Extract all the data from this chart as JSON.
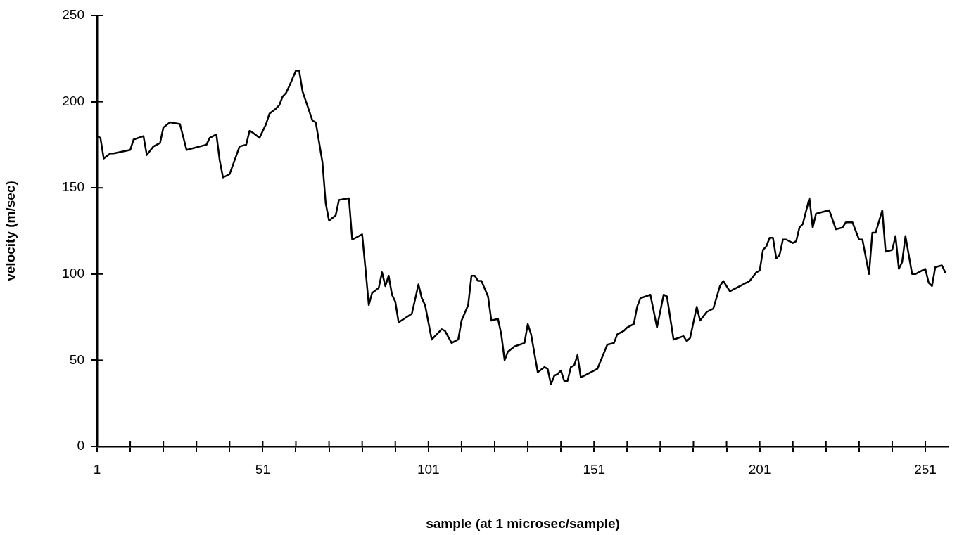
{
  "chart_data": {
    "type": "line",
    "xlabel": "sample (at 1 microsec/sample)",
    "ylabel": "velocity (m/sec)",
    "xlim": [
      1,
      258
    ],
    "ylim": [
      0,
      250
    ],
    "xticks": [
      1,
      {
        "value": 11,
        "label": null
      },
      {
        "value": 21,
        "label": null
      },
      {
        "value": 31,
        "label": null
      },
      {
        "value": 41,
        "label": null
      },
      51,
      {
        "value": 61,
        "label": null
      },
      {
        "value": 71,
        "label": null
      },
      {
        "value": 81,
        "label": null
      },
      {
        "value": 91,
        "label": null
      },
      101,
      {
        "value": 111,
        "label": null
      },
      {
        "value": 121,
        "label": null
      },
      {
        "value": 131,
        "label": null
      },
      {
        "value": 141,
        "label": null
      },
      151,
      {
        "value": 161,
        "label": null
      },
      {
        "value": 171,
        "label": null
      },
      {
        "value": 181,
        "label": null
      },
      {
        "value": 191,
        "label": null
      },
      201,
      {
        "value": 211,
        "label": null
      },
      {
        "value": 221,
        "label": null
      },
      {
        "value": 231,
        "label": null
      },
      {
        "value": 241,
        "label": null
      },
      251
    ],
    "yticks": [
      0,
      50,
      100,
      150,
      200,
      250
    ],
    "grid": false,
    "legend": false,
    "series": [
      {
        "color": "#000000",
        "x": [
          1,
          2,
          3,
          5,
          6,
          11,
          12,
          15,
          16,
          18,
          20,
          21,
          23,
          26,
          28,
          34,
          35,
          37,
          38,
          39,
          41,
          44,
          46,
          47,
          48,
          50,
          52,
          53,
          55,
          56,
          57,
          58,
          59,
          61,
          62,
          63,
          66,
          67,
          69,
          70,
          71,
          73,
          74,
          77,
          78,
          81,
          82,
          83,
          84,
          86,
          87,
          88,
          89,
          90,
          91,
          92,
          96,
          98,
          99,
          100,
          102,
          105,
          106,
          108,
          110,
          111,
          113,
          114,
          115,
          116,
          117,
          119,
          120,
          122,
          123,
          124,
          125,
          127,
          130,
          131,
          132,
          134,
          136,
          137,
          138,
          139,
          140,
          141,
          142,
          143,
          144,
          145,
          146,
          147,
          150,
          152,
          155,
          157,
          158,
          160,
          161,
          163,
          164,
          165,
          168,
          170,
          172,
          173,
          175,
          178,
          179,
          180,
          182,
          183,
          185,
          187,
          189,
          190,
          192,
          198,
          200,
          201,
          202,
          203,
          204,
          205,
          206,
          207,
          208,
          209,
          211,
          212,
          213,
          214,
          216,
          217,
          218,
          222,
          224,
          226,
          227,
          229,
          231,
          232,
          234,
          235,
          236,
          238,
          239,
          241,
          242,
          243,
          244,
          245,
          247,
          248,
          251,
          252,
          253,
          254,
          256,
          257
        ],
        "values": [
          180,
          179,
          167,
          170,
          170,
          172,
          178,
          180,
          169,
          174,
          176,
          185,
          188,
          187,
          172,
          175,
          179,
          181,
          166,
          156,
          158,
          174,
          175,
          183,
          182,
          179,
          187,
          193,
          196,
          198,
          203,
          205,
          209,
          218,
          218,
          206,
          189,
          188,
          165,
          141,
          131,
          134,
          143,
          144,
          120,
          123,
          103,
          82,
          89,
          92,
          101,
          93,
          99,
          88,
          84,
          72,
          77,
          94,
          86,
          82,
          62,
          68,
          67,
          60,
          62,
          73,
          82,
          99,
          99,
          96,
          96,
          87,
          73,
          74,
          65,
          50,
          55,
          58,
          60,
          71,
          65,
          43,
          46,
          45,
          36,
          41,
          42,
          44,
          38,
          38,
          46,
          47,
          53,
          40,
          43,
          45,
          59,
          60,
          65,
          67,
          69,
          71,
          81,
          86,
          88,
          69,
          88,
          87,
          62,
          64,
          61,
          63,
          81,
          73,
          78,
          80,
          93,
          96,
          90,
          96,
          101,
          102,
          114,
          116,
          121,
          121,
          109,
          111,
          120,
          120,
          118,
          119,
          127,
          129,
          144,
          127,
          135,
          137,
          126,
          127,
          130,
          130,
          120,
          120,
          100,
          124,
          124,
          137,
          113,
          114,
          122,
          103,
          107,
          122,
          100,
          100,
          103,
          95,
          93,
          104,
          105,
          101
        ]
      }
    ]
  }
}
